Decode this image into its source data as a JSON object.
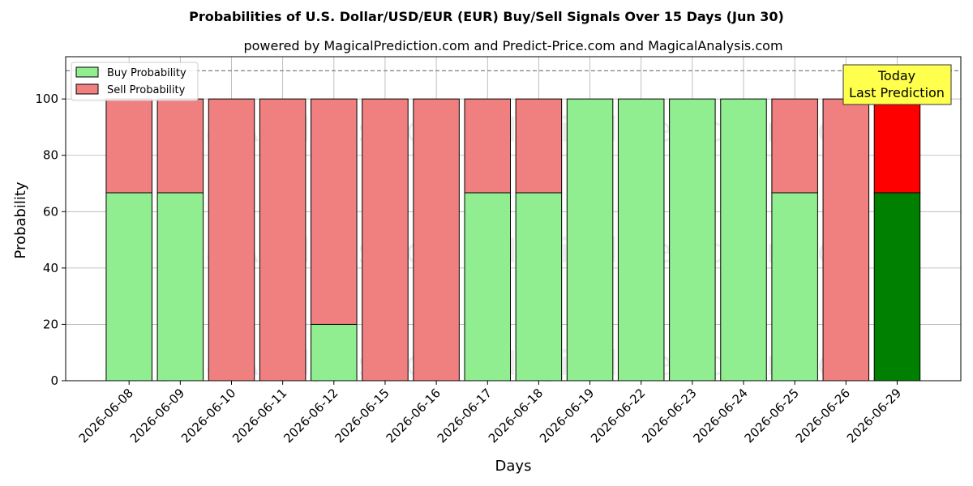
{
  "chart_data": {
    "type": "bar",
    "stacked": true,
    "title": "Probabilities of U.S. Dollar/USD/EUR (EUR) Buy/Sell Signals Over 15 Days (Jun 30)",
    "subtitle": "powered by MagicalPrediction.com and Predict-Price.com and MagicalAnalysis.com",
    "xlabel": "Days",
    "ylabel": "Probability",
    "ylim": [
      0,
      115
    ],
    "yticks": [
      0,
      20,
      40,
      60,
      80,
      100
    ],
    "grid": true,
    "legend_placement": "top-left",
    "categories": [
      "2026-06-08",
      "2026-06-09",
      "2026-06-10",
      "2026-06-11",
      "2026-06-12",
      "2026-06-15",
      "2026-06-16",
      "2026-06-17",
      "2026-06-18",
      "2026-06-19",
      "2026-06-22",
      "2026-06-23",
      "2026-06-24",
      "2026-06-25",
      "2026-06-26",
      "2026-06-29"
    ],
    "series": [
      {
        "name": "Buy Probability",
        "color": "#90ee90",
        "highlight_color": "#008000",
        "values": [
          66.7,
          66.7,
          0,
          0,
          20,
          0,
          0,
          66.7,
          66.7,
          100,
          100,
          100,
          100,
          66.7,
          0,
          66.7
        ]
      },
      {
        "name": "Sell Probability",
        "color": "#f08080",
        "highlight_color": "#ff0000",
        "values": [
          33.3,
          33.3,
          100,
          100,
          80,
          100,
          100,
          33.3,
          33.3,
          0,
          0,
          0,
          0,
          33.3,
          100,
          33.3
        ]
      }
    ],
    "highlight_index": 15,
    "reference_line": {
      "y": 110,
      "style": "dashed",
      "color": "#808080"
    },
    "annotation": {
      "lines": [
        "Today",
        "Last Prediction"
      ],
      "background": "#ffff4d",
      "placement": "top-right"
    },
    "watermarks": [
      "MagicalAnalysis.com",
      "MagicalPrediction.com"
    ]
  }
}
